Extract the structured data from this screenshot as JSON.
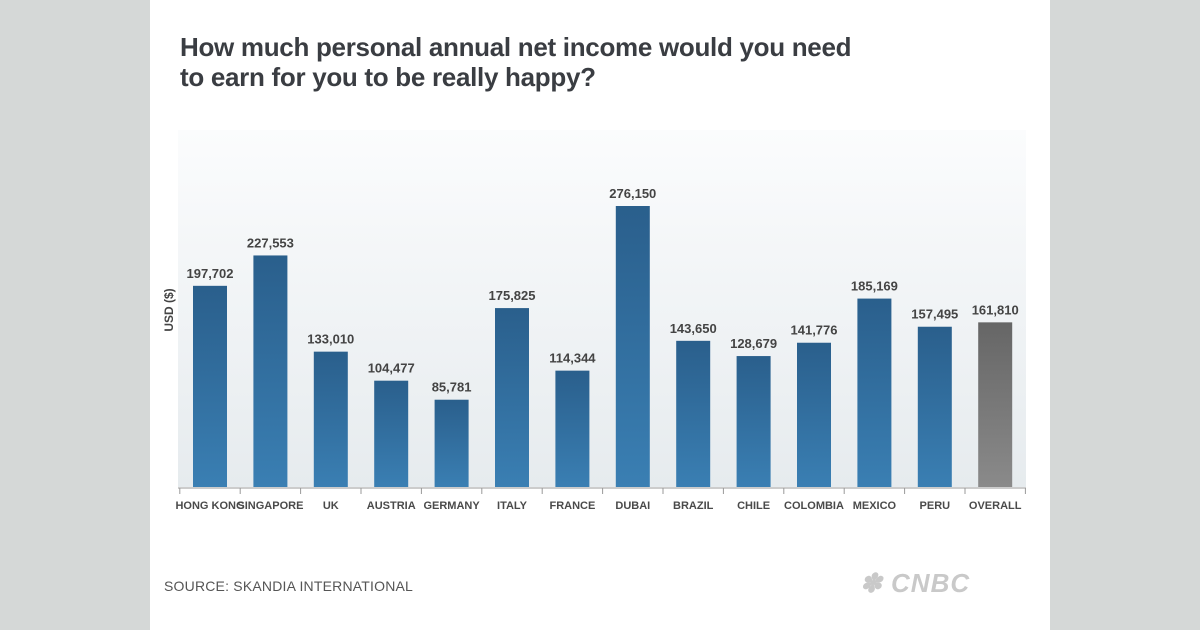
{
  "chart_data": {
    "type": "bar",
    "title": "How much personal annual net income would you need to earn for you to be really happy?",
    "title_lines": [
      "How much personal annual net income would you need",
      "to earn for you to be really happy?"
    ],
    "ylabel": "USD ($)",
    "xlabel": "",
    "categories": [
      "HONG KONG",
      "SINGAPORE",
      "UK",
      "AUSTRIA",
      "GERMANY",
      "ITALY",
      "FRANCE",
      "DUBAI",
      "BRAZIL",
      "CHILE",
      "COLOMBIA",
      "MEXICO",
      "PERU",
      "OVERALL"
    ],
    "values": [
      197702,
      227553,
      133010,
      104477,
      85781,
      175825,
      114344,
      276150,
      143650,
      128679,
      141776,
      185169,
      157495,
      161810
    ],
    "value_labels": [
      "197,702",
      "227,553",
      "133,010",
      "104,477",
      "85,781",
      "175,825",
      "114,344",
      "276,150",
      "143,650",
      "128,679",
      "141,776",
      "185,169",
      "157,495",
      "161,810"
    ],
    "ylim": [
      0,
      276150
    ],
    "grid": false,
    "colors": {
      "bar": "#2e6a99",
      "overall_bar": "#707070"
    }
  },
  "source": "SOURCE: SKANDIA INTERNATIONAL",
  "logo": "CNBC"
}
